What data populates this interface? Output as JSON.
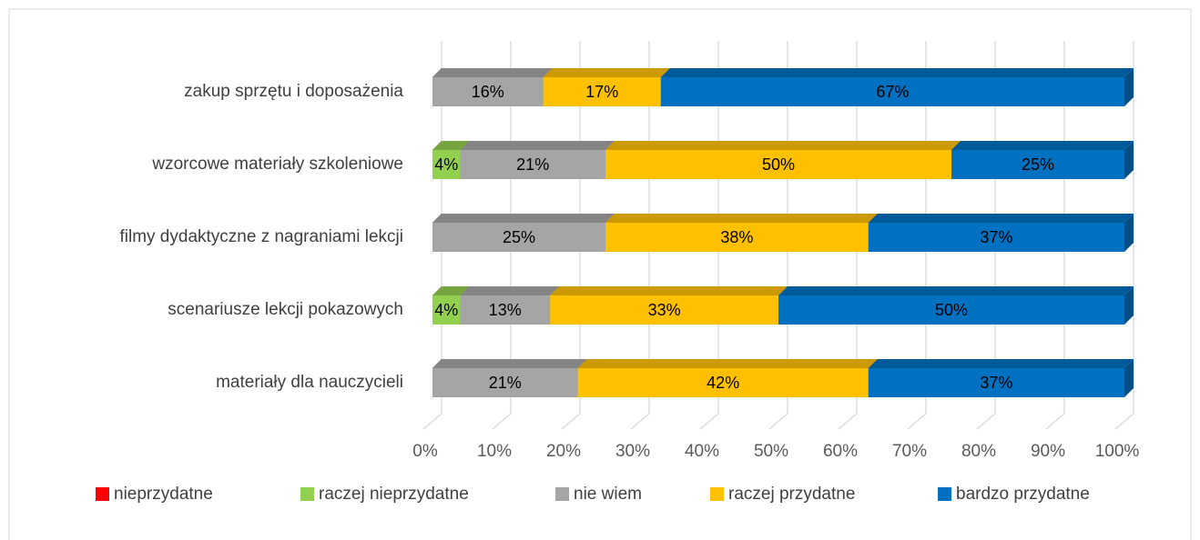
{
  "chart_data": {
    "type": "stacked-bar-horizontal",
    "categories": [
      "zakup sprzętu i doposażenia",
      "wzorcowe materiały szkoleniowe",
      "filmy dydaktyczne z nagraniami lekcji",
      "scenariusze lekcji pokazowych",
      "materiały dla nauczycieli"
    ],
    "series": [
      {
        "name": "nieprzydatne",
        "color": "#ff0000",
        "values": [
          0,
          0,
          0,
          0,
          0
        ],
        "value_labels": [
          null,
          null,
          null,
          null,
          null
        ]
      },
      {
        "name": "raczej nieprzydatne",
        "color": "#92d050",
        "values": [
          0,
          4,
          0,
          4,
          0
        ],
        "value_labels": [
          null,
          "4%",
          null,
          "4%",
          null
        ]
      },
      {
        "name": "nie wiem",
        "color": "#a5a5a5",
        "values": [
          16,
          21,
          25,
          13,
          21
        ],
        "value_labels": [
          "16%",
          "21%",
          "25%",
          "13%",
          "21%"
        ]
      },
      {
        "name": "raczej przydatne",
        "color": "#ffc000",
        "values": [
          17,
          50,
          38,
          33,
          42
        ],
        "value_labels": [
          "17%",
          "50%",
          "38%",
          "33%",
          "42%"
        ]
      },
      {
        "name": "bardzo przydatne",
        "color": "#0070c0",
        "values": [
          67,
          25,
          37,
          50,
          37
        ],
        "value_labels": [
          "67%",
          "25%",
          "37%",
          "50%",
          "37%"
        ]
      }
    ],
    "xlim": [
      0,
      100
    ],
    "xticks": [
      {
        "value": 0,
        "label": "0%"
      },
      {
        "value": 10,
        "label": "10%"
      },
      {
        "value": 20,
        "label": "20%"
      },
      {
        "value": 30,
        "label": "30%"
      },
      {
        "value": 40,
        "label": "40%"
      },
      {
        "value": 50,
        "label": "50%"
      },
      {
        "value": 60,
        "label": "60%"
      },
      {
        "value": 70,
        "label": "70%"
      },
      {
        "value": 80,
        "label": "80%"
      },
      {
        "value": 90,
        "label": "90%"
      },
      {
        "value": 100,
        "label": "100%"
      }
    ],
    "grid": true,
    "legend": "bottom"
  }
}
